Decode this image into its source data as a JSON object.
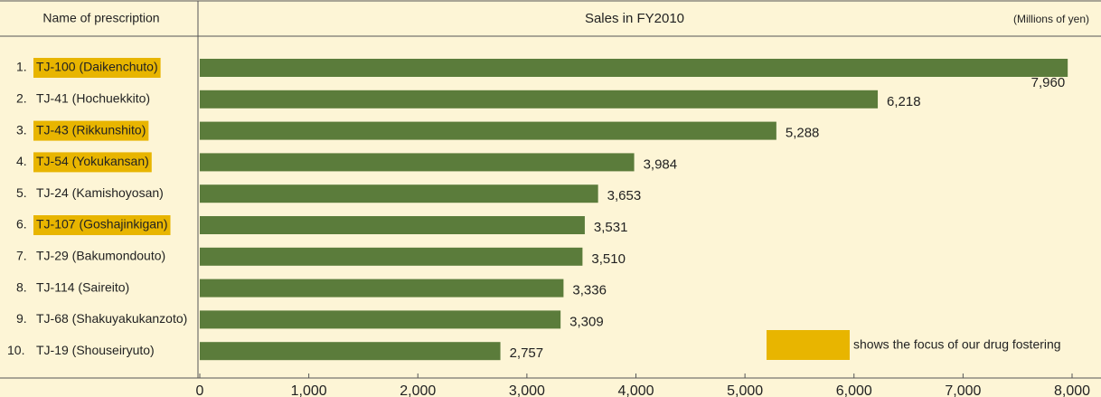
{
  "chart_data": {
    "type": "bar",
    "orientation": "horizontal",
    "category_header": "Name of prescription",
    "title": "Sales in FY2010",
    "unit": "(Millions of yen)",
    "ranks": [
      "1.",
      "2.",
      "3.",
      "4.",
      "5.",
      "6.",
      "7.",
      "8.",
      "9.",
      "10."
    ],
    "categories": [
      "TJ-100 (Daikenchuto)",
      "TJ-41 (Hochuekkito)",
      "TJ-43 (Rikkunshito)",
      "TJ-54 (Yokukansan)",
      "TJ-24 (Kamishoyosan)",
      "TJ-107 (Goshajinkigan)",
      "TJ-29 (Bakumondouto)",
      "TJ-114 (Saireito)",
      "TJ-68 (Shakuyakukanzoto)",
      "TJ-19 (Shouseiryuto)"
    ],
    "highlighted": [
      true,
      false,
      true,
      true,
      false,
      true,
      false,
      false,
      false,
      false
    ],
    "values": [
      7960,
      6218,
      5288,
      3984,
      3653,
      3531,
      3510,
      3336,
      3309,
      2757
    ],
    "value_labels": [
      "7,960",
      "6,218",
      "5,288",
      "3,984",
      "3,653",
      "3,531",
      "3,510",
      "3,336",
      "3,309",
      "2,757"
    ],
    "color": "#5b7c3b",
    "highlight_color": "#e8b500",
    "legend": "shows the focus of our drug fostering",
    "xlim": [
      0,
      8000
    ],
    "xticks": [
      0,
      {
        "value": 1000,
        "label": "1,000"
      },
      {
        "value": 2000,
        "label": "2,000"
      },
      {
        "value": 3000,
        "label": "3,000"
      },
      {
        "value": 4000,
        "label": "4,000"
      },
      {
        "value": 5000,
        "label": "5,000"
      },
      {
        "value": 6000,
        "label": "6,000"
      },
      {
        "value": 7000,
        "label": "7,000"
      },
      {
        "value": 8000,
        "label": "8,000"
      }
    ]
  }
}
